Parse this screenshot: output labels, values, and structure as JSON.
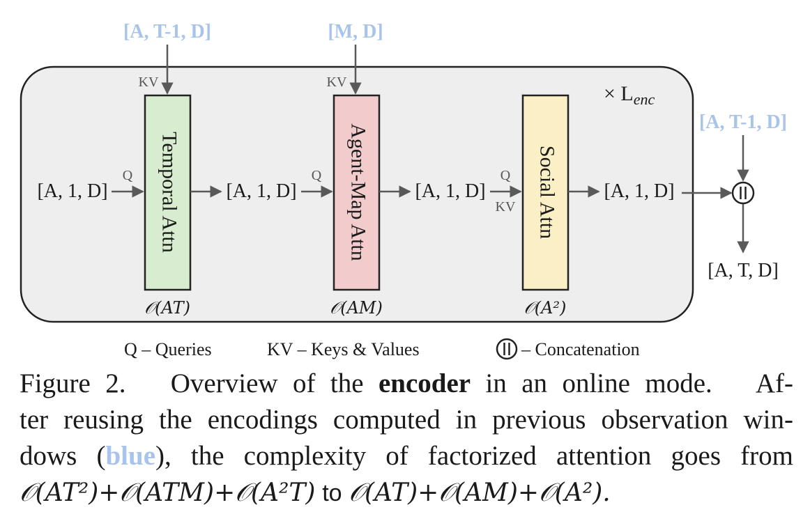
{
  "diagram": {
    "repeat_label": "× L",
    "repeat_sub": "enc",
    "external_inputs": {
      "temporal": "[A, T-1, D]",
      "agent_map": "[M, D]",
      "concat": "[A, T-1, D]"
    },
    "blocks": [
      {
        "label": "Temporal Attn",
        "complexity": "𝒪(AT)",
        "fill": "#d8ecd0",
        "kv_label": "KV",
        "q_label": "Q",
        "qkv_label": ""
      },
      {
        "label": "Agent-Map Attn",
        "complexity": "𝒪(AM)",
        "fill": "#f2cccc",
        "kv_label": "KV",
        "q_label": "Q",
        "qkv_label": ""
      },
      {
        "label": "Social Attn",
        "complexity": "𝒪(A²)",
        "fill": "#fbefc6",
        "kv_label": "",
        "q_label": "Q",
        "qkv_label": "KV"
      }
    ],
    "flow_labels": [
      "[A, 1, D]",
      "[A, 1, D]",
      "[A, 1, D]",
      "[A, 1, D]"
    ],
    "output_label": "[A, T, D]",
    "concat_symbol": "||",
    "legend": {
      "q": "Q – Queries",
      "kv": "KV – Keys & Values",
      "concat": "– Concatenation"
    },
    "colors": {
      "box_fill": "#eeeeee",
      "blue": "#a9c4ea",
      "arrow": "#595959"
    }
  },
  "caption": {
    "line1_a": "Figure 2.",
    "line1_b": "Overview of the",
    "line1_bold": "encoder",
    "line1_c": "in an online mode.",
    "line1_d": "Af-",
    "line2": "ter reusing the encodings computed in previous observation win-",
    "line3_a": "dows (",
    "line3_blue": "blue",
    "line3_b": "), the complexity of factorized attention goes from",
    "line4_before": "𝒪(AT²)+𝒪(ATM)+𝒪(A²T)",
    "line4_to": "to",
    "line4_after": "𝒪(AT)+𝒪(AM)+𝒪(A²)."
  }
}
